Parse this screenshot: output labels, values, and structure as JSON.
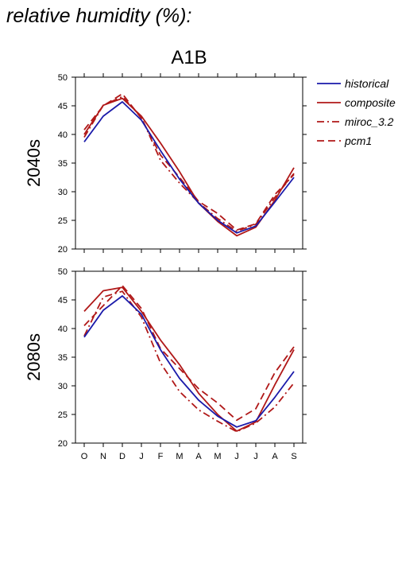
{
  "page": {
    "title": "relative humidity (%):"
  },
  "chart_data": {
    "type": "line",
    "scenario": "A1B",
    "categories": [
      "O",
      "N",
      "D",
      "J",
      "F",
      "M",
      "A",
      "M",
      "J",
      "J",
      "A",
      "S"
    ],
    "ylim": [
      20,
      50
    ],
    "yticks": [
      20,
      25,
      30,
      35,
      40,
      45,
      50
    ],
    "grid": false,
    "legend_position": "right",
    "colors": {
      "historical": "#1a1aaa",
      "models": "#b01818"
    },
    "legend": [
      {
        "key": "historical",
        "label": "historical",
        "color": "#1a1aaa",
        "dash": "solid"
      },
      {
        "key": "composite",
        "label": "composite",
        "color": "#b01818",
        "dash": "solid"
      },
      {
        "key": "miroc",
        "label": "miroc_3.2",
        "color": "#b01818",
        "dash": "dashdot"
      },
      {
        "key": "pcm1",
        "label": "pcm1",
        "color": "#b01818",
        "dash": "dashed"
      }
    ],
    "panels": [
      {
        "label": "2040s",
        "series": [
          {
            "key": "historical",
            "name": "historical",
            "values": [
              38.7,
              43.2,
              45.7,
              42.5,
              37.2,
              32.2,
              28.0,
              25.0,
              22.8,
              24.0,
              28.2,
              32.5
            ]
          },
          {
            "key": "composite",
            "name": "composite",
            "values": [
              40.0,
              45.1,
              46.3,
              43.2,
              38.5,
              33.5,
              28.0,
              24.8,
              22.3,
              23.8,
              28.5,
              34.2
            ]
          },
          {
            "key": "miroc",
            "name": "miroc_3.2",
            "values": [
              39.5,
              45.1,
              46.6,
              43.0,
              35.5,
              31.5,
              28.1,
              25.3,
              23.1,
              24.3,
              29.0,
              33.2
            ]
          },
          {
            "key": "pcm1",
            "name": "pcm1",
            "values": [
              40.8,
              45.0,
              47.1,
              42.8,
              36.4,
              32.5,
              28.3,
              26.2,
              23.3,
              24.4,
              29.5,
              33.0
            ]
          }
        ]
      },
      {
        "label": "2080s",
        "series": [
          {
            "key": "historical",
            "name": "historical",
            "values": [
              38.5,
              43.2,
              45.7,
              42.5,
              36.3,
              31.3,
              27.5,
              24.7,
              22.8,
              23.9,
              28.0,
              32.5
            ]
          },
          {
            "key": "composite",
            "name": "composite",
            "values": [
              43.0,
              46.6,
              47.2,
              43.0,
              38.0,
              33.7,
              28.7,
              25.0,
              22.1,
              23.7,
              30.2,
              36.3
            ]
          },
          {
            "key": "miroc",
            "name": "miroc_3.2",
            "values": [
              38.7,
              45.5,
              46.5,
              42.0,
              34.0,
              29.0,
              25.8,
              23.8,
              22.0,
              23.5,
              26.3,
              30.5
            ]
          },
          {
            "key": "pcm1",
            "name": "pcm1",
            "values": [
              40.5,
              44.0,
              47.5,
              43.5,
              36.5,
              33.0,
              29.5,
              27.0,
              24.0,
              26.0,
              32.3,
              36.8
            ]
          }
        ]
      }
    ]
  }
}
